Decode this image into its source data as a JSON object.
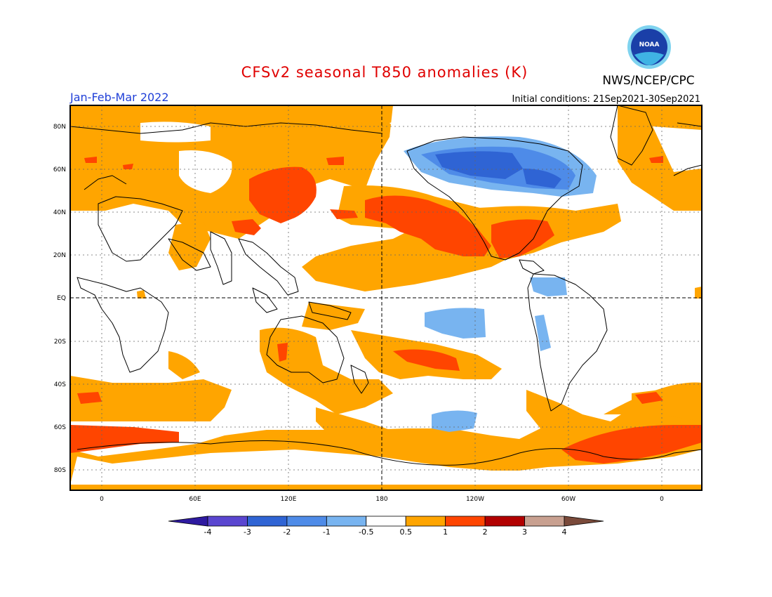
{
  "header": {
    "title": "CFSv2 seasonal T850 anomalies (K)",
    "season": "Jan-Feb-Mar 2022",
    "initial_conditions": "Initial conditions: 21Sep2021-30Sep2021",
    "agency": "NWS/NCEP/CPC",
    "logo_text": "NOAA"
  },
  "map": {
    "lat_labels": [
      "80N",
      "60N",
      "40N",
      "20N",
      "EQ",
      "20S",
      "40S",
      "60S",
      "80S"
    ],
    "lon_labels": [
      "0",
      "60E",
      "120E",
      "180",
      "120W",
      "60W",
      "0"
    ]
  },
  "colorbar": {
    "tick_labels": [
      "-4",
      "-3",
      "-2",
      "-1",
      "-0.5",
      "0.5",
      "1",
      "2",
      "3",
      "4"
    ],
    "colors": [
      "#2e1aa0",
      "#5a46d0",
      "#2f64d4",
      "#4e8be8",
      "#78b4f0",
      "#ffffff",
      "#ffa500",
      "#ff4500",
      "#b20000",
      "#c8a090",
      "#7a4a3a"
    ]
  },
  "palette": {
    "weak_warm": "#ffa500",
    "moderate_warm": "#ff4500",
    "weak_cold": "#78b4f0",
    "moderate_cold": "#4e8be8",
    "strong_cold": "#2f64d4",
    "title_color": "#e00000",
    "season_color": "#1f3fd8"
  }
}
